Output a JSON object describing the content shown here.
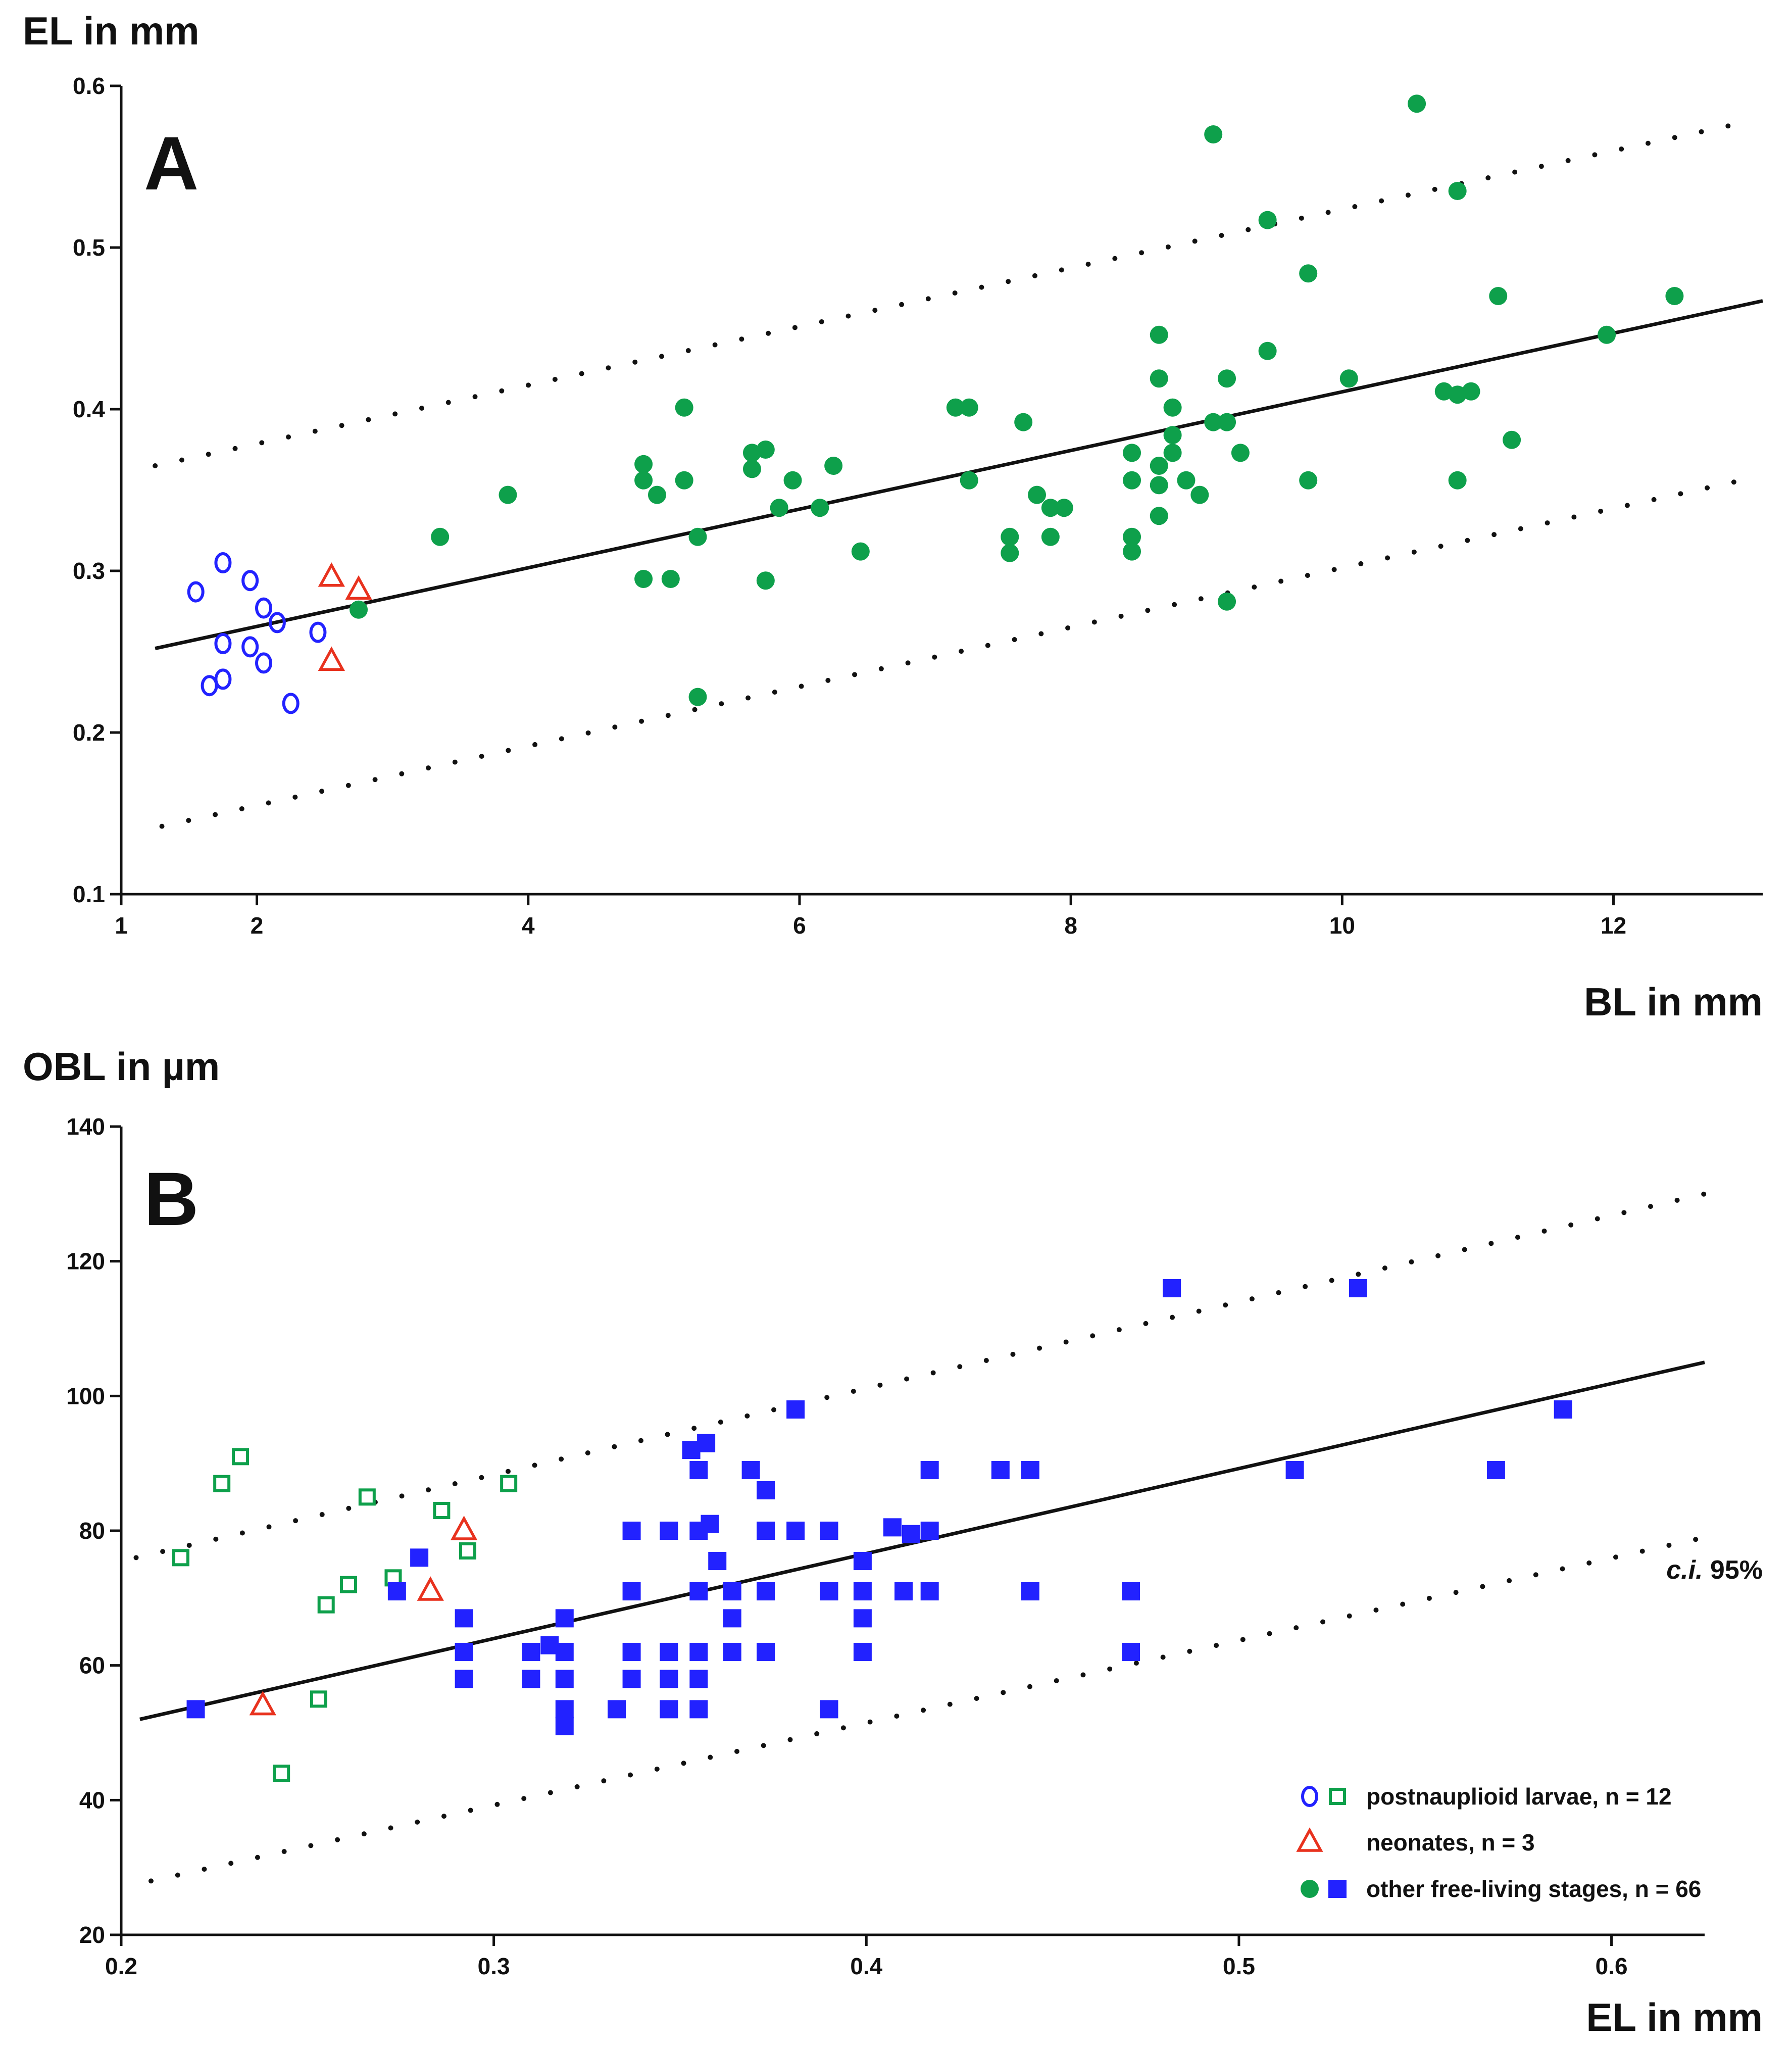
{
  "chart_data": [
    {
      "panel": "A",
      "type": "scatter",
      "xlabel": "BL in mm",
      "ylabel": "EL in mm",
      "xlim": [
        1,
        13.1
      ],
      "ylim": [
        0.1,
        0.6
      ],
      "x_ticks": [
        1,
        2,
        4,
        6,
        8,
        10,
        12
      ],
      "y_ticks": [
        0.1,
        0.2,
        0.3,
        0.4,
        0.5,
        0.6
      ],
      "x_tick_labels": [
        "1",
        "2",
        "4",
        "6",
        "8",
        "10",
        "12"
      ],
      "y_tick_labels": [
        "0.1",
        "0.2",
        "0.3",
        "0.4",
        "0.5",
        "0.6"
      ],
      "regression": {
        "x": [
          1.25,
          13.1
        ],
        "y": [
          0.252,
          0.467
        ]
      },
      "ci_upper": {
        "x": [
          1.25,
          13.0
        ],
        "y": [
          0.365,
          0.578
        ]
      },
      "ci_lower": {
        "x": [
          1.3,
          13.0
        ],
        "y": [
          0.142,
          0.357
        ]
      },
      "series": [
        {
          "group": "postnaupliod",
          "marker": "open-circle",
          "color": "#2222ff",
          "points": [
            [
              1.55,
              0.287
            ],
            [
              1.75,
              0.305
            ],
            [
              1.95,
              0.294
            ],
            [
              2.05,
              0.277
            ],
            [
              2.15,
              0.268
            ],
            [
              1.75,
              0.255
            ],
            [
              1.95,
              0.253
            ],
            [
              2.05,
              0.243
            ],
            [
              1.75,
              0.233
            ],
            [
              1.65,
              0.229
            ],
            [
              2.25,
              0.218
            ],
            [
              2.45,
              0.262
            ]
          ]
        },
        {
          "group": "neonates",
          "marker": "open-triangle",
          "color": "#e8321e",
          "points": [
            [
              2.55,
              0.296
            ],
            [
              2.75,
              0.288
            ],
            [
              2.55,
              0.244
            ]
          ]
        },
        {
          "group": "free-living",
          "marker": "filled-circle",
          "color": "#0ea04b",
          "points": [
            [
              2.75,
              0.276
            ],
            [
              3.35,
              0.321
            ],
            [
              3.85,
              0.347
            ],
            [
              4.85,
              0.366
            ],
            [
              4.85,
              0.356
            ],
            [
              4.95,
              0.347
            ],
            [
              4.85,
              0.295
            ],
            [
              5.05,
              0.295
            ],
            [
              5.15,
              0.401
            ],
            [
              5.15,
              0.356
            ],
            [
              5.25,
              0.321
            ],
            [
              5.25,
              0.222
            ],
            [
              5.65,
              0.373
            ],
            [
              5.65,
              0.363
            ],
            [
              5.75,
              0.375
            ],
            [
              5.85,
              0.339
            ],
            [
              5.75,
              0.294
            ],
            [
              5.95,
              0.356
            ],
            [
              6.15,
              0.339
            ],
            [
              6.25,
              0.365
            ],
            [
              6.45,
              0.312
            ],
            [
              7.15,
              0.401
            ],
            [
              7.25,
              0.401
            ],
            [
              7.25,
              0.356
            ],
            [
              7.55,
              0.321
            ],
            [
              7.55,
              0.311
            ],
            [
              7.65,
              0.392
            ],
            [
              7.75,
              0.347
            ],
            [
              7.85,
              0.339
            ],
            [
              7.85,
              0.321
            ],
            [
              7.95,
              0.339
            ],
            [
              8.45,
              0.373
            ],
            [
              8.45,
              0.356
            ],
            [
              8.45,
              0.321
            ],
            [
              8.45,
              0.312
            ],
            [
              8.65,
              0.446
            ],
            [
              8.65,
              0.419
            ],
            [
              8.65,
              0.365
            ],
            [
              8.65,
              0.353
            ],
            [
              8.65,
              0.334
            ],
            [
              8.75,
              0.401
            ],
            [
              8.75,
              0.384
            ],
            [
              8.75,
              0.373
            ],
            [
              8.85,
              0.356
            ],
            [
              8.95,
              0.347
            ],
            [
              9.05,
              0.57
            ],
            [
              9.05,
              0.392
            ],
            [
              9.15,
              0.419
            ],
            [
              9.15,
              0.392
            ],
            [
              9.15,
              0.281
            ],
            [
              9.25,
              0.373
            ],
            [
              9.45,
              0.517
            ],
            [
              9.45,
              0.436
            ],
            [
              9.75,
              0.484
            ],
            [
              9.75,
              0.356
            ],
            [
              10.05,
              0.419
            ],
            [
              10.55,
              0.589
            ],
            [
              10.75,
              0.411
            ],
            [
              10.85,
              0.535
            ],
            [
              10.85,
              0.409
            ],
            [
              10.85,
              0.356
            ],
            [
              10.95,
              0.411
            ],
            [
              11.15,
              0.47
            ],
            [
              11.25,
              0.381
            ],
            [
              11.95,
              0.446
            ],
            [
              12.45,
              0.47
            ]
          ]
        }
      ]
    },
    {
      "panel": "B",
      "type": "scatter",
      "xlabel": "EL in mm",
      "ylabel": "OBL in µm",
      "xlim": [
        0.2,
        0.625
      ],
      "ylim": [
        20,
        140
      ],
      "x_ticks": [
        0.2,
        0.3,
        0.4,
        0.5,
        0.6
      ],
      "y_ticks": [
        20,
        40,
        60,
        80,
        100,
        120,
        140
      ],
      "x_tick_labels": [
        "0.2",
        "0.3",
        "0.4",
        "0.5",
        "0.6"
      ],
      "y_tick_labels": [
        "20",
        "40",
        "60",
        "80",
        "100",
        "120",
        "140"
      ],
      "regression": {
        "x": [
          0.205,
          0.625
        ],
        "y": [
          52,
          105
        ]
      },
      "ci_upper": {
        "x": [
          0.204,
          0.625
        ],
        "y": [
          76,
          130
        ]
      },
      "ci_lower": {
        "x": [
          0.208,
          0.625
        ],
        "y": [
          28,
          79
        ]
      },
      "series": [
        {
          "group": "postnaupliod",
          "marker": "open-square",
          "color": "#0ea04b",
          "points": [
            [
              0.216,
              76
            ],
            [
              0.227,
              87
            ],
            [
              0.232,
              91
            ],
            [
              0.243,
              44
            ],
            [
              0.253,
              55
            ],
            [
              0.255,
              69
            ],
            [
              0.261,
              72
            ],
            [
              0.266,
              85
            ],
            [
              0.273,
              73
            ],
            [
              0.286,
              83
            ],
            [
              0.293,
              77
            ],
            [
              0.304,
              87
            ]
          ]
        },
        {
          "group": "neonates",
          "marker": "open-triangle",
          "color": "#e8321e",
          "points": [
            [
              0.238,
              54
            ],
            [
              0.283,
              71
            ],
            [
              0.292,
              80
            ]
          ]
        },
        {
          "group": "free-living",
          "marker": "filled-square",
          "color": "#2222ff",
          "points": [
            [
              0.22,
              53.5
            ],
            [
              0.274,
              71
            ],
            [
              0.28,
              76
            ],
            [
              0.292,
              67
            ],
            [
              0.292,
              62
            ],
            [
              0.292,
              58
            ],
            [
              0.31,
              62
            ],
            [
              0.31,
              58
            ],
            [
              0.315,
              63
            ],
            [
              0.319,
              67
            ],
            [
              0.319,
              62
            ],
            [
              0.319,
              58
            ],
            [
              0.319,
              53.5
            ],
            [
              0.319,
              51
            ],
            [
              0.333,
              53.5
            ],
            [
              0.337,
              80
            ],
            [
              0.337,
              71
            ],
            [
              0.337,
              62
            ],
            [
              0.337,
              58
            ],
            [
              0.347,
              80
            ],
            [
              0.347,
              62
            ],
            [
              0.347,
              58
            ],
            [
              0.347,
              53.5
            ],
            [
              0.353,
              92
            ],
            [
              0.355,
              89
            ],
            [
              0.355,
              80
            ],
            [
              0.355,
              71
            ],
            [
              0.355,
              62
            ],
            [
              0.355,
              58
            ],
            [
              0.355,
              53.5
            ],
            [
              0.357,
              93
            ],
            [
              0.358,
              81
            ],
            [
              0.36,
              75.5
            ],
            [
              0.364,
              71
            ],
            [
              0.364,
              67
            ],
            [
              0.364,
              62
            ],
            [
              0.369,
              89
            ],
            [
              0.373,
              86
            ],
            [
              0.373,
              80
            ],
            [
              0.373,
              71
            ],
            [
              0.373,
              62
            ],
            [
              0.381,
              98
            ],
            [
              0.381,
              80
            ],
            [
              0.39,
              80
            ],
            [
              0.39,
              71
            ],
            [
              0.39,
              53.5
            ],
            [
              0.399,
              75.5
            ],
            [
              0.399,
              71
            ],
            [
              0.399,
              67
            ],
            [
              0.399,
              62
            ],
            [
              0.407,
              80.5
            ],
            [
              0.41,
              71
            ],
            [
              0.412,
              79.5
            ],
            [
              0.417,
              89
            ],
            [
              0.417,
              80
            ],
            [
              0.417,
              71
            ],
            [
              0.436,
              89
            ],
            [
              0.444,
              89
            ],
            [
              0.444,
              71
            ],
            [
              0.471,
              71
            ],
            [
              0.471,
              62
            ],
            [
              0.482,
              116
            ],
            [
              0.515,
              89
            ],
            [
              0.532,
              116
            ],
            [
              0.569,
              89
            ],
            [
              0.587,
              98
            ]
          ]
        }
      ]
    }
  ],
  "panel_labels": {
    "a": "A",
    "b": "B"
  },
  "ci_label": {
    "italic": "c.i.",
    "rest": " 95%"
  },
  "legend": [
    {
      "marker1": "open-circle",
      "color1": "#2222ff",
      "marker2": "open-square",
      "color2": "#0ea04b",
      "label": "postnauplioid larvae, n = 12"
    },
    {
      "marker1": "open-triangle",
      "color1": "#e8321e",
      "label": "neonates, n = 3"
    },
    {
      "marker1": "filled-circle",
      "color1": "#0ea04b",
      "marker2": "filled-square",
      "color2": "#2222ff",
      "label": "other free-living stages, n = 66"
    }
  ]
}
